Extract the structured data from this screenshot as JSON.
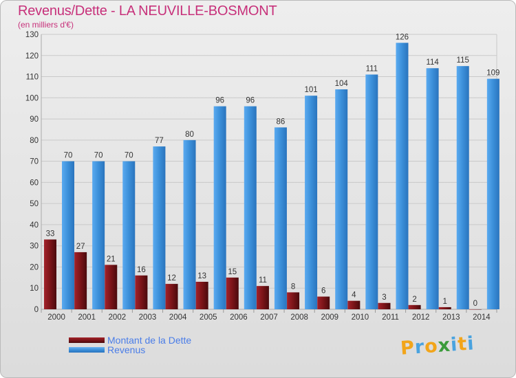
{
  "header": {
    "title": "Revenus/Dette - LA NEUVILLE-BOSMONT",
    "subtitle": "(en milliers d'€)"
  },
  "logo": {
    "text": "Proxiti",
    "letters": [
      "P",
      "r",
      "o",
      "x",
      "i",
      "t",
      "i"
    ],
    "colors": [
      "#f2a51a",
      "#4aa3df",
      "#f2a51a",
      "#3a9b3a",
      "#4aa3df",
      "#f2a51a",
      "#4aa3df"
    ]
  },
  "colors": {
    "dette": "#7a1418",
    "revenus": "#3b8fd9",
    "grid": "#c9c9c9",
    "axis_text": "#333333",
    "title": "#c7307a"
  },
  "chart_data": {
    "type": "bar",
    "categories": [
      "2000",
      "2001",
      "2002",
      "2003",
      "2004",
      "2005",
      "2006",
      "2007",
      "2008",
      "2009",
      "2010",
      "2011",
      "2012",
      "2013",
      "2014"
    ],
    "series": [
      {
        "name": "Montant de la Dette",
        "values": [
          33,
          27,
          21,
          16,
          12,
          13,
          15,
          11,
          8,
          6,
          4,
          3,
          2,
          1,
          0
        ]
      },
      {
        "name": "Revenus",
        "values": [
          70,
          70,
          70,
          77,
          80,
          96,
          96,
          86,
          101,
          104,
          111,
          126,
          114,
          115,
          109
        ]
      }
    ],
    "ylim": [
      0,
      130
    ],
    "yticks": [
      0,
      10,
      20,
      30,
      40,
      50,
      60,
      70,
      80,
      90,
      100,
      110,
      120,
      130
    ],
    "grid": true,
    "legend_position": "bottom-left"
  }
}
